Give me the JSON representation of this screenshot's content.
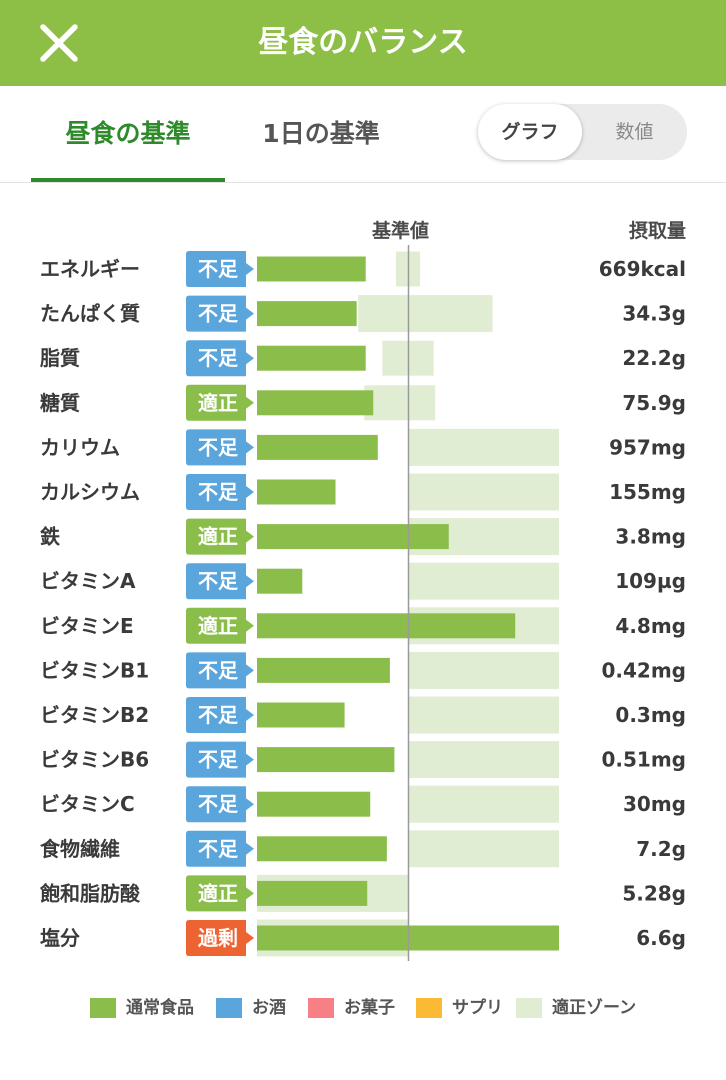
{
  "header": {
    "title": "昼食のバランス",
    "close_icon": "close-icon"
  },
  "tabs": [
    {
      "label": "昼食の基準",
      "active": true
    },
    {
      "label": "1日の基準",
      "active": false
    }
  ],
  "toggle": {
    "graph": "グラフ",
    "values": "数値",
    "selected": "グラフ"
  },
  "colors": {
    "brand": "#8dbe45",
    "bar": "#8bbd4b",
    "zone": "#e1edd2",
    "badge_low": "#5aa5dc",
    "badge_ok": "#8bbd4b",
    "badge_over": "#ee6332",
    "tab_active": "#2f8a2b"
  },
  "chart_data": {
    "type": "bar",
    "reference_label": "基準値",
    "intake_label": "摂取量",
    "reference": 1.0,
    "rows": [
      {
        "name": "エネルギー",
        "status": "不足",
        "value_text": "669kcal",
        "ratio": 0.72,
        "zone": [
          0.92,
          1.08
        ]
      },
      {
        "name": "たんぱく質",
        "status": "不足",
        "value_text": "34.3g",
        "ratio": 0.66,
        "zone": [
          0.67,
          1.56
        ]
      },
      {
        "name": "脂質",
        "status": "不足",
        "value_text": "22.2g",
        "ratio": 0.72,
        "zone": [
          0.83,
          1.17
        ]
      },
      {
        "name": "糖質",
        "status": "適正",
        "value_text": "75.9g",
        "ratio": 0.77,
        "zone": [
          0.71,
          1.18
        ]
      },
      {
        "name": "カリウム",
        "status": "不足",
        "value_text": "957mg",
        "ratio": 0.8,
        "zone": [
          1.0,
          2.0
        ]
      },
      {
        "name": "カルシウム",
        "status": "不足",
        "value_text": "155mg",
        "ratio": 0.52,
        "zone": [
          1.0,
          2.0
        ]
      },
      {
        "name": "鉄",
        "status": "適正",
        "value_text": "3.8mg",
        "ratio": 1.27,
        "zone": [
          1.0,
          2.0
        ]
      },
      {
        "name": "ビタミンA",
        "status": "不足",
        "value_text": "109µg",
        "ratio": 0.3,
        "zone": [
          1.0,
          2.0
        ]
      },
      {
        "name": "ビタミンE",
        "status": "適正",
        "value_text": "4.8mg",
        "ratio": 1.71,
        "zone": [
          1.0,
          2.0
        ]
      },
      {
        "name": "ビタミンB1",
        "status": "不足",
        "value_text": "0.42mg",
        "ratio": 0.88,
        "zone": [
          1.0,
          2.0
        ]
      },
      {
        "name": "ビタミンB2",
        "status": "不足",
        "value_text": "0.3mg",
        "ratio": 0.58,
        "zone": [
          1.0,
          2.0
        ]
      },
      {
        "name": "ビタミンB6",
        "status": "不足",
        "value_text": "0.51mg",
        "ratio": 0.91,
        "zone": [
          1.0,
          2.0
        ]
      },
      {
        "name": "ビタミンC",
        "status": "不足",
        "value_text": "30mg",
        "ratio": 0.75,
        "zone": [
          1.0,
          2.0
        ]
      },
      {
        "name": "食物繊維",
        "status": "不足",
        "value_text": "7.2g",
        "ratio": 0.86,
        "zone": [
          1.0,
          2.0
        ]
      },
      {
        "name": "飽和脂肪酸",
        "status": "適正",
        "value_text": "5.28g",
        "ratio": 0.73,
        "zone": [
          0.0,
          1.0
        ]
      },
      {
        "name": "塩分",
        "status": "過剰",
        "value_text": "6.6g",
        "ratio": 2.0,
        "zone": [
          0.0,
          1.0
        ]
      }
    ]
  },
  "legend": [
    {
      "label": "通常食品",
      "color": "#8bbd4b"
    },
    {
      "label": "お酒",
      "color": "#5aa5dc"
    },
    {
      "label": "お菓子",
      "color": "#f77f86"
    },
    {
      "label": "サプリ",
      "color": "#fbb935"
    },
    {
      "label": "適正ゾーン",
      "color": "#e1edd2"
    }
  ]
}
